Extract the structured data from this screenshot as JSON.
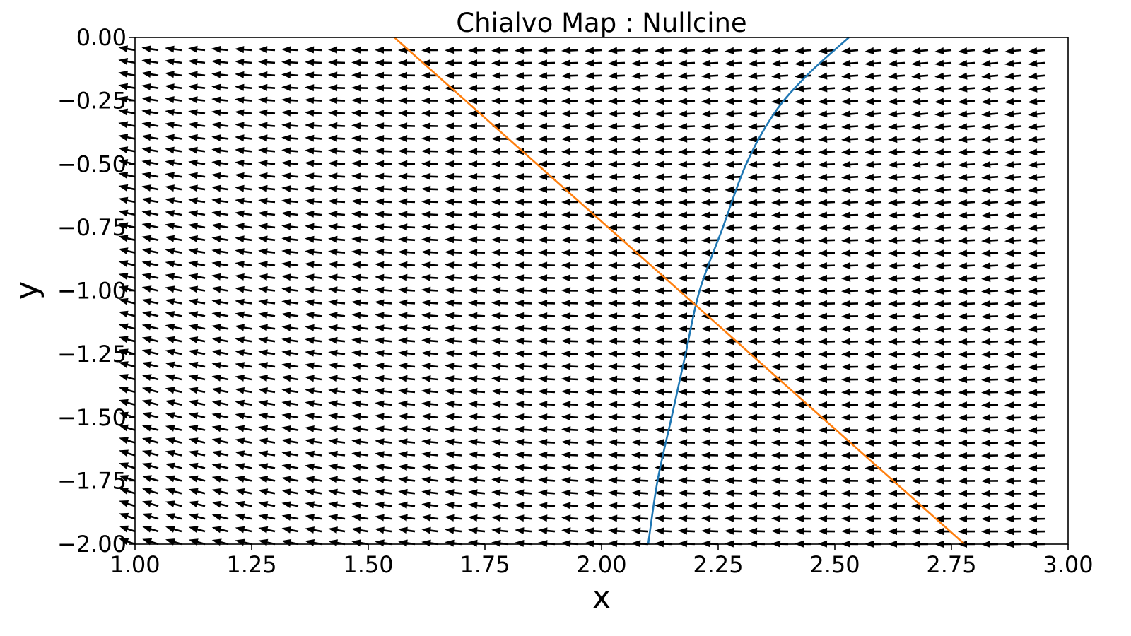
{
  "chart_data": {
    "type": "quiver",
    "title": "Chialvo Map : Nullcine",
    "xlabel": "x",
    "ylabel": "y",
    "xlim": [
      1.0,
      3.0
    ],
    "ylim": [
      -2.0,
      0.0
    ],
    "x_ticks": [
      "1.00",
      "1.25",
      "1.50",
      "1.75",
      "2.00",
      "2.25",
      "2.50",
      "2.75",
      "3.00"
    ],
    "y_ticks": [
      "0.00",
      "−0.25",
      "−0.50",
      "−0.75",
      "−1.00",
      "−1.25",
      "−1.50",
      "−1.75",
      "−2.00"
    ],
    "grid": false,
    "legend": "none",
    "vector_field": {
      "x_range": [
        1.0,
        2.95
      ],
      "y_range": [
        -2.0,
        -0.05
      ],
      "step": 0.05,
      "color": "#000000"
    },
    "series": [
      {
        "kind": "nullcline-x",
        "color": "#1f77b4",
        "points": [
          [
            2.1,
            -2.0
          ],
          [
            2.12,
            -1.75
          ],
          [
            2.15,
            -1.5
          ],
          [
            2.18,
            -1.25
          ],
          [
            2.21,
            -1.0
          ],
          [
            2.26,
            -0.75
          ],
          [
            2.31,
            -0.5
          ],
          [
            2.37,
            -0.3
          ],
          [
            2.44,
            -0.15
          ],
          [
            2.53,
            0.0
          ]
        ]
      },
      {
        "kind": "nullcline-y",
        "color": "#ff7f0e",
        "points": [
          [
            1.556,
            0.0
          ],
          [
            2.778,
            -2.0
          ]
        ]
      }
    ]
  }
}
